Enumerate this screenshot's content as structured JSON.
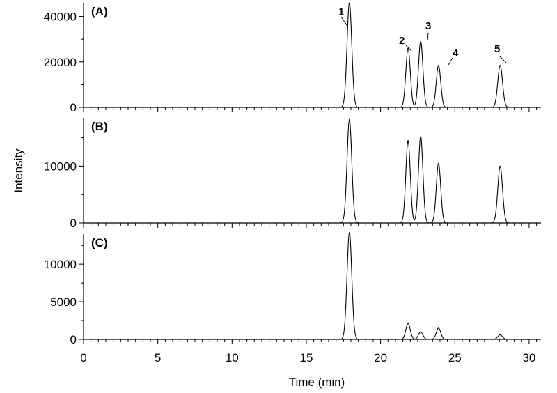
{
  "chart_data": {
    "type": "line",
    "xlabel": "Time (min)",
    "ylabel": "Intensity",
    "xlim": [
      0,
      30.8
    ],
    "x_ticks": [
      0,
      5,
      10,
      15,
      20,
      25,
      30
    ],
    "x_tick_labels": [
      "0",
      "5",
      "10",
      "15",
      "20",
      "25",
      "30"
    ],
    "panels": [
      {
        "label": "(A)",
        "ylim": [
          0,
          46000
        ],
        "y_ticks": [
          0,
          20000,
          40000
        ],
        "y_tick_labels": [
          "0",
          "20000",
          "40000"
        ],
        "peaks": [
          {
            "label": "1",
            "time": 17.9,
            "height": 46000,
            "width": 0.16
          },
          {
            "label": "2",
            "time": 21.85,
            "height": 26000,
            "width": 0.15
          },
          {
            "label": "3",
            "time": 22.7,
            "height": 29000,
            "width": 0.15
          },
          {
            "label": "4",
            "time": 23.9,
            "height": 18500,
            "width": 0.15
          },
          {
            "label": "5",
            "time": 28.05,
            "height": 18500,
            "width": 0.16
          }
        ]
      },
      {
        "label": "(B)",
        "ylim": [
          0,
          18500
        ],
        "y_ticks": [
          0,
          10000
        ],
        "y_tick_labels": [
          "0",
          "10000"
        ],
        "peaks": [
          {
            "label": "",
            "time": 17.9,
            "height": 18200,
            "width": 0.16
          },
          {
            "label": "",
            "time": 21.85,
            "height": 14500,
            "width": 0.15
          },
          {
            "label": "",
            "time": 22.7,
            "height": 15200,
            "width": 0.15
          },
          {
            "label": "",
            "time": 23.9,
            "height": 10500,
            "width": 0.15
          },
          {
            "label": "",
            "time": 28.05,
            "height": 10000,
            "width": 0.16
          }
        ]
      },
      {
        "label": "(C)",
        "ylim": [
          0,
          14000
        ],
        "y_ticks": [
          0,
          5000,
          10000
        ],
        "y_tick_labels": [
          "0",
          "5000",
          "10000"
        ],
        "peaks": [
          {
            "label": "",
            "time": 17.9,
            "height": 14200,
            "width": 0.16
          },
          {
            "label": "",
            "time": 21.85,
            "height": 2100,
            "width": 0.15
          },
          {
            "label": "",
            "time": 22.7,
            "height": 1000,
            "width": 0.15
          },
          {
            "label": "",
            "time": 23.9,
            "height": 1500,
            "width": 0.15
          },
          {
            "label": "",
            "time": 28.05,
            "height": 600,
            "width": 0.16
          }
        ]
      }
    ]
  }
}
